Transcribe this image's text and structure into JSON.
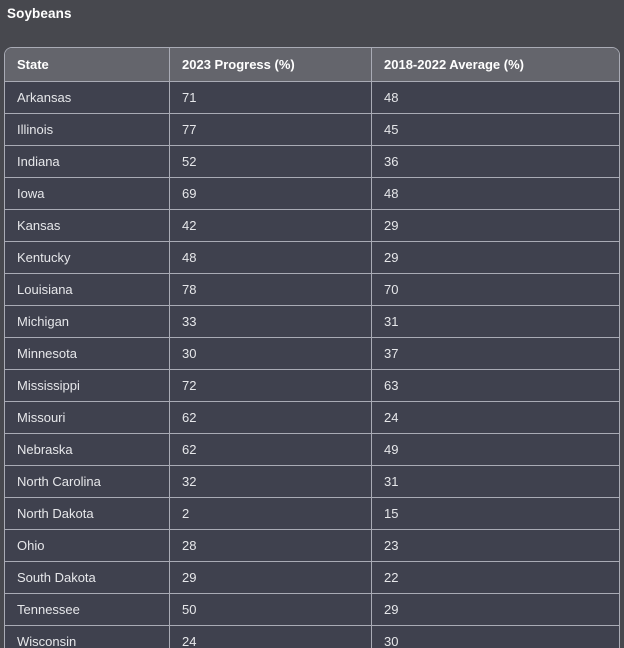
{
  "title": "Soybeans",
  "colors": {
    "page_bg": "#47484E",
    "row_bg": "#3F414E",
    "header_bg": "#64656C",
    "grid_line": "#A9ABB5",
    "title_text": "#FFFFFF",
    "header_text": "#FFFFFF",
    "cell_text": "#E6E7EA"
  },
  "table": {
    "headers": {
      "state": "State",
      "progress": "2023 Progress (%)",
      "average": "2018-2022 Average (%)"
    },
    "rows": [
      {
        "state": "Arkansas",
        "progress": "71",
        "average": "48"
      },
      {
        "state": "Illinois",
        "progress": "77",
        "average": "45"
      },
      {
        "state": "Indiana",
        "progress": "52",
        "average": "36"
      },
      {
        "state": "Iowa",
        "progress": "69",
        "average": "48"
      },
      {
        "state": "Kansas",
        "progress": "42",
        "average": "29"
      },
      {
        "state": "Kentucky",
        "progress": "48",
        "average": "29"
      },
      {
        "state": "Louisiana",
        "progress": "78",
        "average": "70"
      },
      {
        "state": "Michigan",
        "progress": "33",
        "average": "31"
      },
      {
        "state": "Minnesota",
        "progress": "30",
        "average": "37"
      },
      {
        "state": "Mississippi",
        "progress": "72",
        "average": "63"
      },
      {
        "state": "Missouri",
        "progress": "62",
        "average": "24"
      },
      {
        "state": "Nebraska",
        "progress": "62",
        "average": "49"
      },
      {
        "state": "North Carolina",
        "progress": "32",
        "average": "31"
      },
      {
        "state": "North Dakota",
        "progress": "2",
        "average": "15"
      },
      {
        "state": "Ohio",
        "progress": "28",
        "average": "23"
      },
      {
        "state": "South Dakota",
        "progress": "29",
        "average": "22"
      },
      {
        "state": "Tennessee",
        "progress": "50",
        "average": "29"
      },
      {
        "state": "Wisconsin",
        "progress": "24",
        "average": "30"
      }
    ]
  },
  "chart_data": {
    "type": "table",
    "title": "Soybeans",
    "columns": [
      "State",
      "2023 Progress (%)",
      "2018-2022 Average (%)"
    ],
    "rows": [
      [
        "Arkansas",
        71,
        48
      ],
      [
        "Illinois",
        77,
        45
      ],
      [
        "Indiana",
        52,
        36
      ],
      [
        "Iowa",
        69,
        48
      ],
      [
        "Kansas",
        42,
        29
      ],
      [
        "Kentucky",
        48,
        29
      ],
      [
        "Louisiana",
        78,
        70
      ],
      [
        "Michigan",
        33,
        31
      ],
      [
        "Minnesota",
        30,
        37
      ],
      [
        "Mississippi",
        72,
        63
      ],
      [
        "Missouri",
        62,
        24
      ],
      [
        "Nebraska",
        62,
        49
      ],
      [
        "North Carolina",
        32,
        31
      ],
      [
        "North Dakota",
        2,
        15
      ],
      [
        "Ohio",
        28,
        23
      ],
      [
        "South Dakota",
        29,
        22
      ],
      [
        "Tennessee",
        50,
        29
      ],
      [
        "Wisconsin",
        24,
        30
      ]
    ]
  }
}
